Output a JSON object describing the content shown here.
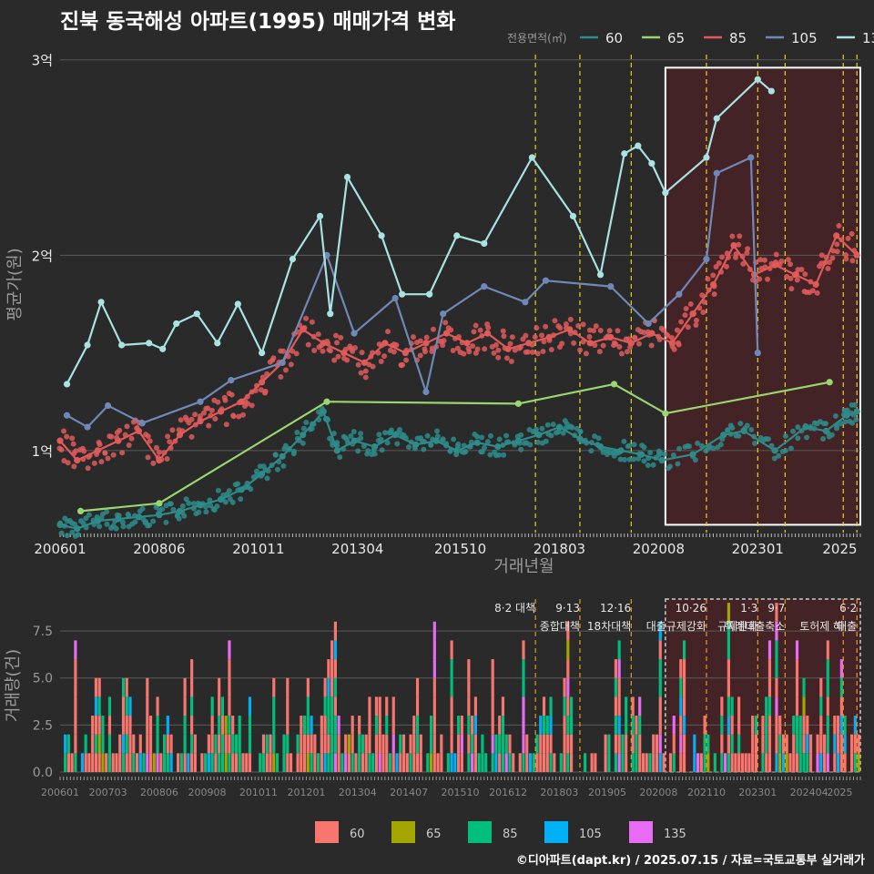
{
  "title": "진북 동국해성 아파트(1995) 매매가격 변화",
  "credit": "©디아파트(dapt.kr) / 2025.07.15 / 자료=국토교통부 실거래가",
  "colors": {
    "background": "#2a2a2b",
    "grid": "#5a5a5a",
    "text": "#e8e8e8",
    "axis_title": "#9a9a9a",
    "highlight_fill": "#5a1e22",
    "highlight_stroke": "#ffffff",
    "policy_line": "#e8d21a"
  },
  "chart_data": [
    {
      "type": "line",
      "title": "진북 동국해성 아파트(1995) 매매가격 변화",
      "xlabel": "거래년월",
      "ylabel": "평균가(원)",
      "legend_title": "전용면적(㎡)",
      "legend_position": "top-right",
      "grid": true,
      "xlim": [
        "2006-01",
        "2025-07"
      ],
      "ylim": [
        0.58,
        3.12
      ],
      "y_unit": "억",
      "x_ticks": [
        "200601",
        "200806",
        "201011",
        "201304",
        "201510",
        "201803",
        "202008",
        "202301",
        "2025"
      ],
      "y_ticks": [
        {
          "value": 1,
          "label": "1억"
        },
        {
          "value": 2,
          "label": "2억"
        },
        {
          "value": 3,
          "label": "3억"
        }
      ],
      "highlight_range": {
        "from": "2020-10",
        "to": "2025-07",
        "ymin": 0.62,
        "ymax": 2.96
      },
      "policy_dates": [
        "2017-08",
        "2018-09",
        "2019-12",
        "2021-10",
        "2023-01",
        "2023-09",
        "2025-02",
        "2025-06"
      ],
      "series": [
        {
          "name": "60",
          "color": "#2e8b8a",
          "points": [
            [
              "2006-01",
              0.62
            ],
            [
              "2006-06",
              0.6
            ],
            [
              "2006-12",
              0.64
            ],
            [
              "2007-06",
              0.65
            ],
            [
              "2007-12",
              0.66
            ],
            [
              "2008-06",
              0.67
            ],
            [
              "2008-12",
              0.69
            ],
            [
              "2009-06",
              0.72
            ],
            [
              "2009-12",
              0.75
            ],
            [
              "2010-06",
              0.8
            ],
            [
              "2010-12",
              0.88
            ],
            [
              "2011-06",
              0.97
            ],
            [
              "2011-12",
              1.08
            ],
            [
              "2012-06",
              1.2
            ],
            [
              "2012-10",
              1.0
            ],
            [
              "2013-03",
              1.05
            ],
            [
              "2013-09",
              1.02
            ],
            [
              "2014-03",
              1.08
            ],
            [
              "2014-09",
              1.03
            ],
            [
              "2015-03",
              1.05
            ],
            [
              "2015-09",
              1.0
            ],
            [
              "2016-03",
              1.04
            ],
            [
              "2016-09",
              1.02
            ],
            [
              "2017-03",
              1.05
            ],
            [
              "2017-09",
              1.08
            ],
            [
              "2018-03",
              1.12
            ],
            [
              "2018-09",
              1.06
            ],
            [
              "2019-03",
              1.02
            ],
            [
              "2019-09",
              1.0
            ],
            [
              "2020-03",
              0.98
            ],
            [
              "2020-09",
              0.95
            ],
            [
              "2021-06",
              0.98
            ],
            [
              "2022-03",
              1.08
            ],
            [
              "2022-09",
              1.1
            ],
            [
              "2023-06",
              1.0
            ],
            [
              "2024-03",
              1.12
            ],
            [
              "2024-09",
              1.1
            ],
            [
              "2025-03",
              1.18
            ],
            [
              "2025-06",
              1.2
            ]
          ]
        },
        {
          "name": "65",
          "color": "#9ad66e",
          "points": [
            [
              "2006-07",
              0.69
            ],
            [
              "2008-06",
              0.73
            ],
            [
              "2012-07",
              1.25
            ],
            [
              "2017-03",
              1.24
            ],
            [
              "2019-07",
              1.34
            ],
            [
              "2020-10",
              1.19
            ],
            [
              "2024-10",
              1.35
            ]
          ]
        },
        {
          "name": "85",
          "color": "#e05a5a",
          "points": [
            [
              "2006-01",
              1.05
            ],
            [
              "2006-06",
              0.95
            ],
            [
              "2006-12",
              1.0
            ],
            [
              "2007-06",
              1.05
            ],
            [
              "2007-12",
              1.1
            ],
            [
              "2008-06",
              0.95
            ],
            [
              "2008-12",
              1.08
            ],
            [
              "2009-06",
              1.15
            ],
            [
              "2009-12",
              1.2
            ],
            [
              "2010-06",
              1.25
            ],
            [
              "2010-12",
              1.35
            ],
            [
              "2011-06",
              1.45
            ],
            [
              "2011-12",
              1.62
            ],
            [
              "2012-06",
              1.55
            ],
            [
              "2012-12",
              1.5
            ],
            [
              "2013-06",
              1.45
            ],
            [
              "2013-12",
              1.55
            ],
            [
              "2014-06",
              1.5
            ],
            [
              "2014-12",
              1.55
            ],
            [
              "2015-06",
              1.6
            ],
            [
              "2015-12",
              1.55
            ],
            [
              "2016-06",
              1.6
            ],
            [
              "2016-12",
              1.52
            ],
            [
              "2017-06",
              1.55
            ],
            [
              "2017-12",
              1.58
            ],
            [
              "2018-06",
              1.62
            ],
            [
              "2018-12",
              1.55
            ],
            [
              "2019-06",
              1.58
            ],
            [
              "2019-12",
              1.55
            ],
            [
              "2020-06",
              1.6
            ],
            [
              "2020-12",
              1.55
            ],
            [
              "2021-06",
              1.7
            ],
            [
              "2021-12",
              1.85
            ],
            [
              "2022-06",
              2.05
            ],
            [
              "2022-12",
              1.9
            ],
            [
              "2023-06",
              1.95
            ],
            [
              "2023-12",
              1.9
            ],
            [
              "2024-06",
              1.85
            ],
            [
              "2024-12",
              2.1
            ],
            [
              "2025-06",
              2.0
            ]
          ]
        },
        {
          "name": "105",
          "color": "#7088b8",
          "points": [
            [
              "2006-03",
              1.18
            ],
            [
              "2006-09",
              1.12
            ],
            [
              "2007-03",
              1.23
            ],
            [
              "2008-01",
              1.14
            ],
            [
              "2009-06",
              1.25
            ],
            [
              "2010-03",
              1.36
            ],
            [
              "2011-06",
              1.45
            ],
            [
              "2012-07",
              2.0
            ],
            [
              "2013-03",
              1.6
            ],
            [
              "2014-03",
              1.78
            ],
            [
              "2014-12",
              1.3
            ],
            [
              "2015-05",
              1.7
            ],
            [
              "2016-05",
              1.84
            ],
            [
              "2017-05",
              1.76
            ],
            [
              "2017-11",
              1.87
            ],
            [
              "2019-06",
              1.84
            ],
            [
              "2020-05",
              1.65
            ],
            [
              "2021-02",
              1.8
            ],
            [
              "2021-10",
              1.98
            ],
            [
              "2022-01",
              2.42
            ],
            [
              "2022-11",
              2.5
            ],
            [
              "2023-01",
              1.5
            ]
          ]
        },
        {
          "name": "135",
          "color": "#a8e2e2",
          "points": [
            [
              "2006-03",
              1.34
            ],
            [
              "2006-09",
              1.54
            ],
            [
              "2007-01",
              1.76
            ],
            [
              "2007-07",
              1.54
            ],
            [
              "2008-03",
              1.55
            ],
            [
              "2008-07",
              1.52
            ],
            [
              "2008-11",
              1.65
            ],
            [
              "2009-05",
              1.7
            ],
            [
              "2009-11",
              1.55
            ],
            [
              "2010-05",
              1.75
            ],
            [
              "2010-12",
              1.5
            ],
            [
              "2011-09",
              1.98
            ],
            [
              "2012-05",
              2.2
            ],
            [
              "2012-08",
              1.7
            ],
            [
              "2013-01",
              2.4
            ],
            [
              "2013-11",
              2.1
            ],
            [
              "2014-05",
              1.8
            ],
            [
              "2015-01",
              1.8
            ],
            [
              "2015-09",
              2.1
            ],
            [
              "2016-05",
              2.06
            ],
            [
              "2017-07",
              2.5
            ],
            [
              "2018-07",
              2.2
            ],
            [
              "2019-03",
              1.9
            ],
            [
              "2019-10",
              2.52
            ],
            [
              "2020-02",
              2.56
            ],
            [
              "2020-06",
              2.47
            ],
            [
              "2020-10",
              2.32
            ],
            [
              "2021-10",
              2.5
            ],
            [
              "2022-01",
              2.7
            ],
            [
              "2023-01",
              2.9
            ],
            [
              "2023-05",
              2.84
            ]
          ]
        }
      ]
    },
    {
      "type": "bar",
      "stacked": true,
      "ylabel": "거래량(건)",
      "grid": true,
      "xlim": [
        "2006-01",
        "2025-07"
      ],
      "ylim": [
        0,
        9.2
      ],
      "x_ticks": [
        "200601",
        "200703",
        "200806",
        "200908",
        "201011",
        "201201",
        "201304",
        "201407",
        "201510",
        "201612",
        "201803",
        "201905",
        "202008",
        "202110",
        "202301",
        "202404",
        "2025"
      ],
      "y_ticks": [
        {
          "value": 0,
          "label": "0.0"
        },
        {
          "value": 2.5,
          "label": "2.5"
        },
        {
          "value": 5,
          "label": "5.0"
        },
        {
          "value": 7.5,
          "label": "7.5"
        }
      ],
      "legend_position": "bottom",
      "series_colors": [
        {
          "name": "60",
          "color": "#f8766d"
        },
        {
          "name": "65",
          "color": "#a3a500"
        },
        {
          "name": "85",
          "color": "#00bf7d"
        },
        {
          "name": "105",
          "color": "#00b0f6"
        },
        {
          "name": "135",
          "color": "#e76bf3"
        }
      ],
      "highlight_range": {
        "from": "2020-10",
        "to": "2025-07"
      },
      "policy_annotations": [
        {
          "date": "2017-08",
          "line1": "8·2 대책",
          "line2": ""
        },
        {
          "date": "2018-09",
          "line1": "9·13",
          "line2": "종합대책"
        },
        {
          "date": "2019-12",
          "line1": "12·16",
          "line2": "18차대책"
        },
        {
          "date": "2021-10",
          "line1": "10·26",
          "line2": "대출규제강화"
        },
        {
          "date": "2023-01",
          "line1": "1·3",
          "line2": "규제완화"
        },
        {
          "date": "2023-09",
          "line1": "9·7",
          "line2": "특례대출축소"
        },
        {
          "date": "2025-02",
          "line1": "",
          "line2": "토허제 해"
        },
        {
          "date": "2025-06",
          "line1": "6·2",
          "line2": "대출"
        }
      ]
    }
  ]
}
